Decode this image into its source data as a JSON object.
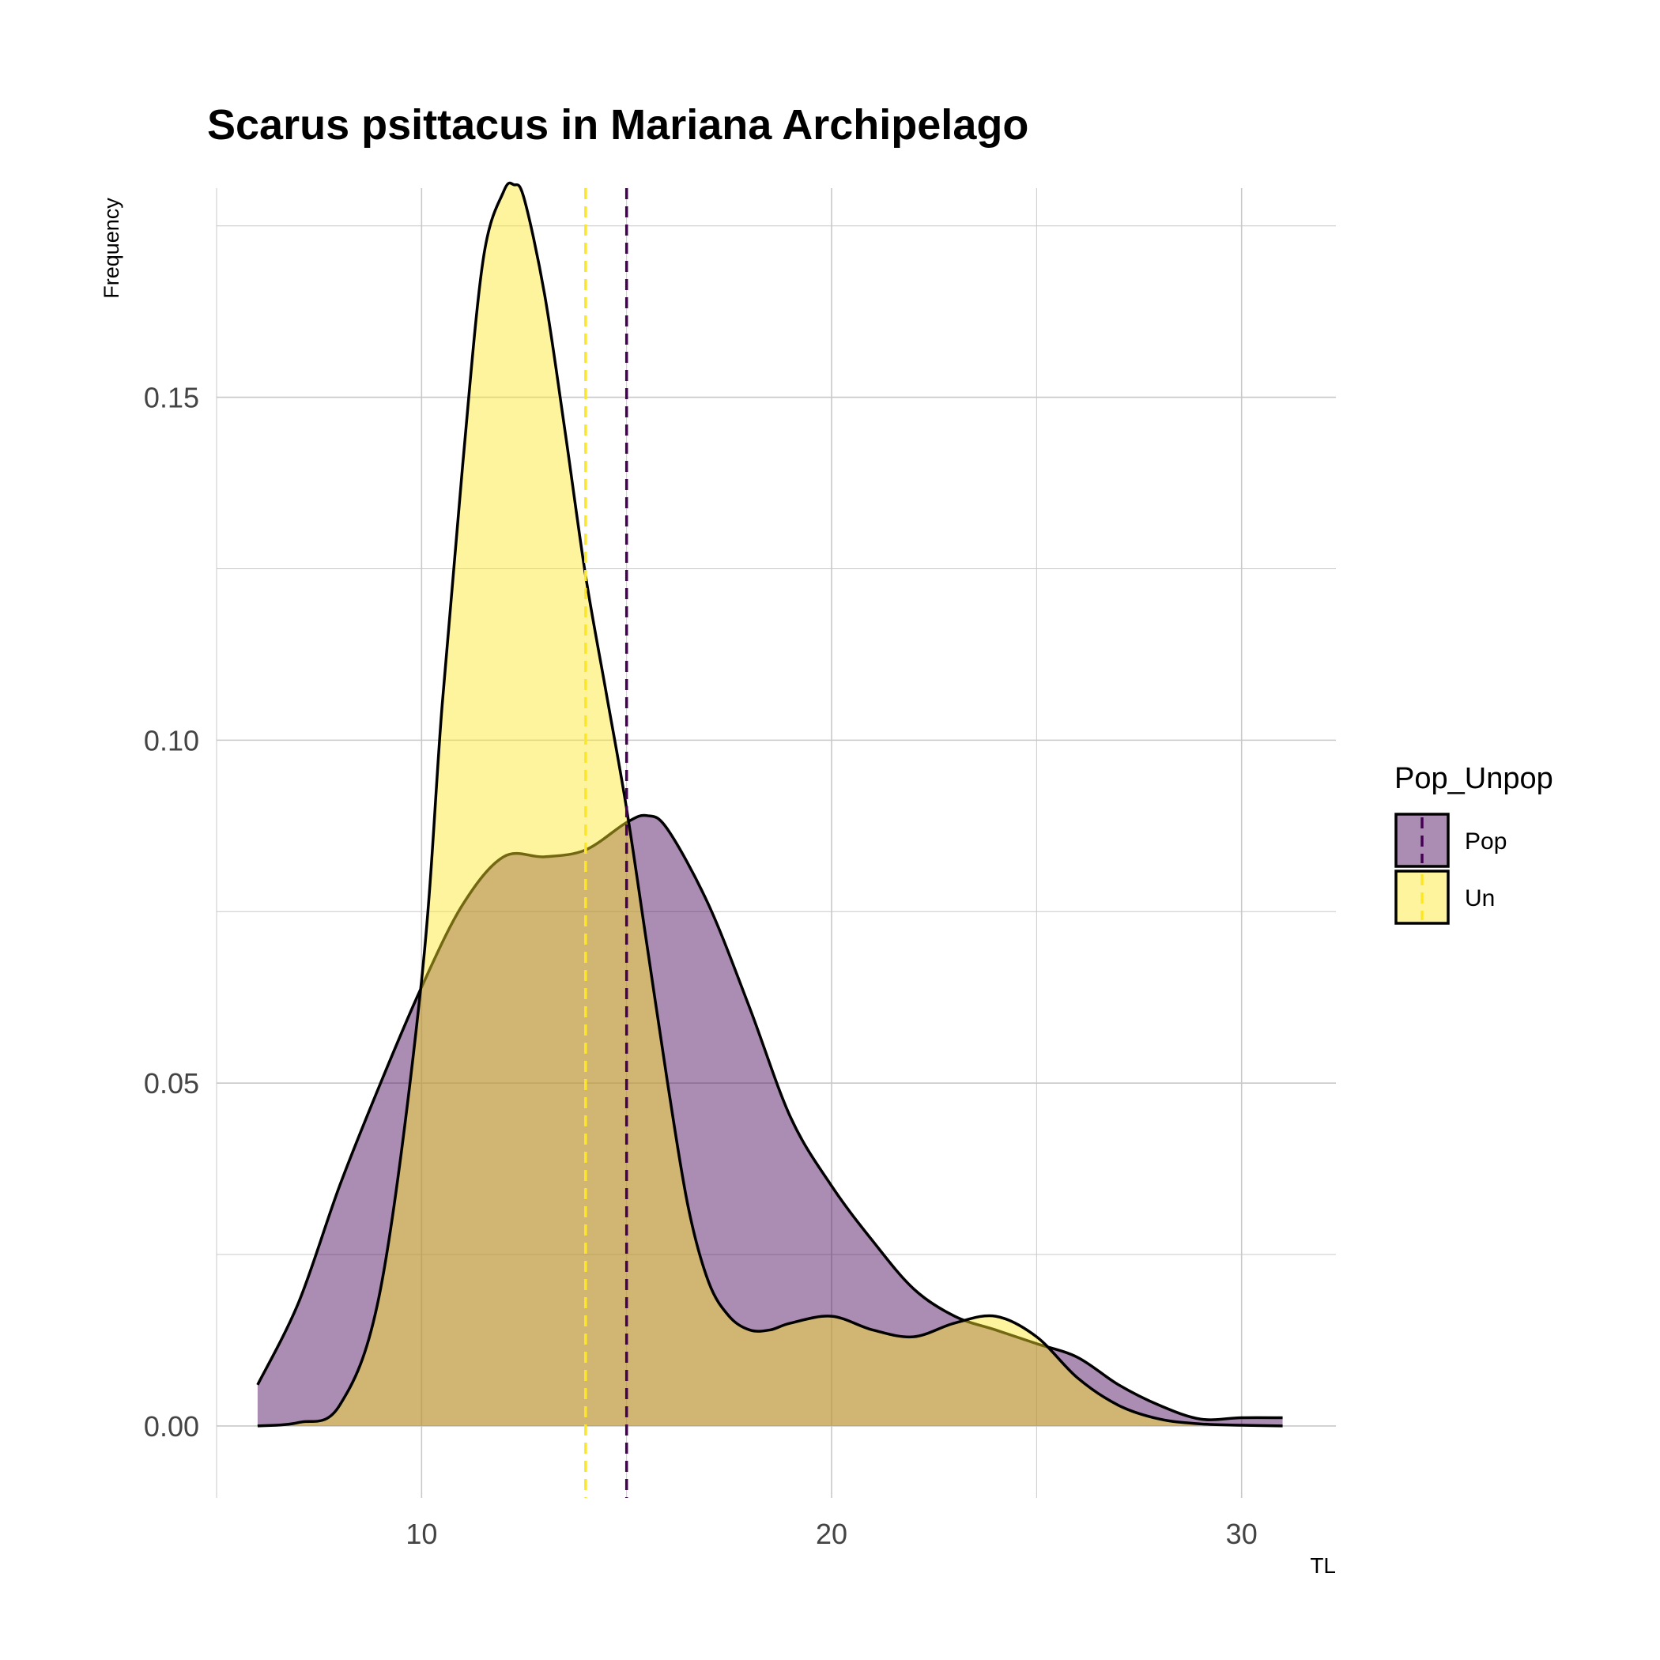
{
  "chart_data": {
    "type": "area",
    "title": "Scarus psittacus in Mariana Archipelago",
    "xlabel": "TL",
    "ylabel": "Frequency",
    "xlim": [
      5,
      32.3
    ],
    "ylim": [
      -0.0105,
      0.1805
    ],
    "x_ticks": [
      10,
      20,
      30
    ],
    "x_tick_labels": [
      "10",
      "20",
      "30"
    ],
    "y_ticks": [
      0,
      0.05,
      0.1,
      0.15
    ],
    "y_tick_labels": [
      "0.00",
      "0.05",
      "0.10",
      "0.15"
    ],
    "grid": true,
    "legend": {
      "title": "Pop_Unpop",
      "position": "right"
    },
    "series": [
      {
        "name": "Pop",
        "fill": "#440154",
        "fill_opacity": 0.45,
        "mean_line": 15,
        "mean_line_color": "#440154",
        "x": [
          6,
          7,
          8,
          9,
          10,
          11,
          12,
          13,
          14,
          15,
          15.5,
          16,
          17,
          18,
          19,
          20,
          21,
          22,
          23,
          24,
          25,
          26,
          27,
          28,
          29,
          30,
          31
        ],
        "y": [
          0.006,
          0.018,
          0.035,
          0.05,
          0.064,
          0.076,
          0.083,
          0.083,
          0.084,
          0.088,
          0.089,
          0.087,
          0.076,
          0.061,
          0.045,
          0.035,
          0.027,
          0.02,
          0.016,
          0.014,
          0.012,
          0.01,
          0.006,
          0.003,
          0.001,
          0.0012,
          0.0012
        ]
      },
      {
        "name": "Un",
        "fill": "#fde725",
        "fill_opacity": 0.45,
        "mean_line": 14,
        "mean_line_color": "#fde725",
        "x": [
          6,
          7,
          8,
          9,
          10,
          10.5,
          11,
          11.5,
          12,
          12.25,
          12.5,
          13,
          13.5,
          14,
          14.5,
          15,
          15.5,
          16,
          16.5,
          17,
          17.5,
          18,
          18.5,
          19,
          20,
          21,
          22,
          23,
          24,
          25,
          26,
          27,
          28,
          29,
          30,
          31
        ],
        "y": [
          0,
          0.0005,
          0.003,
          0.02,
          0.065,
          0.105,
          0.14,
          0.17,
          0.18,
          0.181,
          0.179,
          0.165,
          0.145,
          0.124,
          0.107,
          0.09,
          0.07,
          0.05,
          0.032,
          0.021,
          0.016,
          0.014,
          0.014,
          0.015,
          0.016,
          0.014,
          0.013,
          0.015,
          0.016,
          0.013,
          0.007,
          0.003,
          0.001,
          0.0003,
          0.0001,
          0
        ]
      }
    ]
  }
}
